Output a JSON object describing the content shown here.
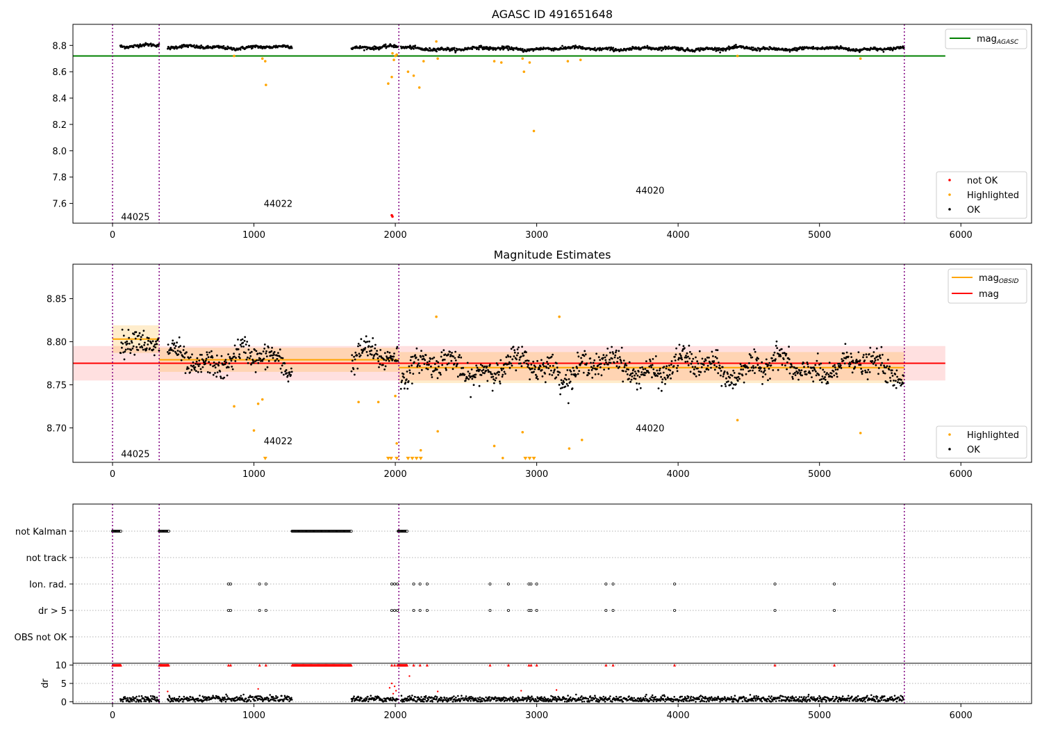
{
  "figure": {
    "panel1_title": "AGASC ID 491651648",
    "panel2_title": "Magnitude Estimates"
  },
  "colors": {
    "ok": "#000000",
    "highlighted": "#ffa500",
    "not_ok": "#ff0000",
    "mag_agasc": "#008000",
    "mag_obsid": "#ffa500",
    "mag": "#ff0000",
    "obsid_line": "#800080",
    "band_red": "#ff0000",
    "band_orange": "#ffa500",
    "grid": "#b0b0b0"
  },
  "chart_data": [
    {
      "id": "panel1",
      "type": "scatter",
      "title": "AGASC ID 491651648",
      "xlabel": "",
      "ylabel": "",
      "xlim": [
        -280,
        6500
      ],
      "ylim": [
        7.45,
        8.96
      ],
      "xticks": [
        0,
        1000,
        2000,
        3000,
        4000,
        5000,
        6000
      ],
      "yticks": [
        7.6,
        7.8,
        8.0,
        8.2,
        8.4,
        8.6,
        8.8
      ],
      "ytick_labels": [
        "7.6",
        "7.8",
        "8.0",
        "8.2",
        "8.4",
        "8.6",
        "8.8"
      ],
      "grid": false,
      "obsid_boundaries": [
        0,
        330,
        2025,
        5600
      ],
      "obsid_labels": [
        {
          "text": "44025",
          "x": 60,
          "y": 7.5
        },
        {
          "text": "44022",
          "x": 1070,
          "y": 7.6
        },
        {
          "text": "44020",
          "x": 3700,
          "y": 7.7
        }
      ],
      "reference_lines": [
        {
          "name": "mag_AGASC",
          "y": 8.72,
          "x": [
            -280,
            5890
          ],
          "color": "#008000"
        }
      ],
      "ok_series": {
        "name": "OK",
        "segments": [
          {
            "x_start": 55,
            "x_end": 330,
            "level": 8.8
          },
          {
            "x_start": 390,
            "x_end": 1270,
            "level": 8.785
          },
          {
            "x_start": 1690,
            "x_end": 2020,
            "level": 8.785
          },
          {
            "x_start": 2040,
            "x_end": 5600,
            "level": 8.775
          }
        ]
      },
      "highlighted_points": {
        "name": "Highlighted",
        "x": [
          860,
          1060,
          1080,
          1085,
          1950,
          1975,
          1980,
          1990,
          2000,
          2010,
          2090,
          2130,
          2170,
          2200,
          2290,
          2300,
          2700,
          2750,
          2900,
          2910,
          2950,
          2980,
          3220,
          3310,
          4420,
          5290
        ],
        "y": [
          8.72,
          8.7,
          8.68,
          8.5,
          8.51,
          8.56,
          8.74,
          8.69,
          8.72,
          8.73,
          8.6,
          8.57,
          8.48,
          8.68,
          8.83,
          8.7,
          8.68,
          8.67,
          8.7,
          8.6,
          8.67,
          8.15,
          8.68,
          8.69,
          8.72,
          8.7
        ]
      },
      "not_ok_points": {
        "name": "not OK",
        "x": [
          1975,
          1980
        ],
        "y": [
          7.51,
          7.5
        ]
      },
      "legend_top": {
        "entries": [
          "mag_AGASC"
        ],
        "position": "upper right"
      },
      "legend_bottom": {
        "entries": [
          "not OK",
          "Highlighted",
          "OK"
        ],
        "position": "lower right"
      }
    },
    {
      "id": "panel2",
      "type": "scatter",
      "title": "Magnitude Estimates",
      "xlabel": "",
      "ylabel": "",
      "xlim": [
        -280,
        6500
      ],
      "ylim": [
        8.66,
        8.89
      ],
      "xticks": [
        0,
        1000,
        2000,
        3000,
        4000,
        5000,
        6000
      ],
      "yticks": [
        8.7,
        8.75,
        8.8,
        8.85
      ],
      "ytick_labels": [
        "8.70",
        "8.75",
        "8.80",
        "8.85"
      ],
      "grid": false,
      "obsid_boundaries": [
        0,
        330,
        2025,
        5600
      ],
      "obsid_labels": [
        {
          "text": "44025",
          "x": 60,
          "y": 8.67
        },
        {
          "text": "44022",
          "x": 1070,
          "y": 8.685
        },
        {
          "text": "44020",
          "x": 3700,
          "y": 8.7
        }
      ],
      "mag": {
        "name": "mag",
        "y": 8.775,
        "band": [
          8.755,
          8.795
        ],
        "x": [
          -280,
          5890
        ]
      },
      "mag_obsid": [
        {
          "x": [
            0,
            330
          ],
          "y": 8.803,
          "band": [
            8.787,
            8.819
          ]
        },
        {
          "x": [
            330,
            2025
          ],
          "y": 8.779,
          "band": [
            8.765,
            8.793
          ]
        },
        {
          "x": [
            2025,
            5600
          ],
          "y": 8.77,
          "band": [
            8.752,
            8.788
          ]
        }
      ],
      "ok_series": {
        "name": "OK",
        "segments": [
          {
            "x_start": 55,
            "x_end": 330,
            "level": 8.805
          },
          {
            "x_start": 390,
            "x_end": 1270,
            "level": 8.779
          },
          {
            "x_start": 1690,
            "x_end": 2020,
            "level": 8.779
          },
          {
            "x_start": 2040,
            "x_end": 5600,
            "level": 8.77
          }
        ]
      },
      "highlighted_points": {
        "name": "Highlighted",
        "x": [
          860,
          1030,
          1060,
          1000,
          1740,
          1880,
          2000,
          2010,
          2180,
          2290,
          2300,
          2700,
          2760,
          2900,
          3160,
          3230,
          3320,
          4420,
          5290
        ],
        "y": [
          8.725,
          8.728,
          8.733,
          8.697,
          8.73,
          8.73,
          8.737,
          8.682,
          8.674,
          8.829,
          8.696,
          8.679,
          8.665,
          8.695,
          8.829,
          8.676,
          8.686,
          8.709,
          8.694
        ]
      },
      "below_range_markers": {
        "name": "Highlighted (below range)",
        "x": [
          1080,
          1950,
          1970,
          2010,
          2090,
          2120,
          2150,
          2180,
          2920,
          2950,
          2980
        ]
      },
      "legend_top": {
        "entries": [
          "mag_OBSID",
          "mag"
        ],
        "position": "upper right"
      },
      "legend_bottom": {
        "entries": [
          "Highlighted",
          "OK"
        ],
        "position": "lower right"
      }
    },
    {
      "id": "panel3",
      "type": "scatter",
      "title": "",
      "xlabel": "",
      "xlim": [
        -280,
        6500
      ],
      "xticks": [
        0,
        1000,
        2000,
        3000,
        4000,
        5000,
        6000
      ],
      "obsid_boundaries": [
        0,
        330,
        2025,
        5600
      ],
      "flag_rows": [
        {
          "label": "not Kalman",
          "ranges": [
            [
              0,
              60
            ],
            [
              330,
              400
            ],
            [
              1270,
              1690
            ],
            [
              2020,
              2085
            ]
          ]
        },
        {
          "label": "not track",
          "ranges": []
        },
        {
          "label": "Ion. rad.",
          "points": [
            820,
            835,
            1040,
            1085,
            1975,
            1995,
            2015,
            2130,
            2175,
            2225,
            2670,
            2800,
            2945,
            2960,
            3000,
            3490,
            3540,
            3975,
            4685,
            5105
          ]
        },
        {
          "label": "dr > 5",
          "points": [
            820,
            835,
            1040,
            1085,
            1975,
            1995,
            2015,
            2130,
            2175,
            2225,
            2670,
            2800,
            2945,
            2960,
            3000,
            3490,
            3540,
            3975,
            4685,
            5105
          ]
        },
        {
          "label": "OBS not OK",
          "ranges": []
        }
      ],
      "dr_panel": {
        "ylabel": "dr",
        "ylim": [
          -0.5,
          10.5
        ],
        "yticks": [
          0,
          5,
          10
        ],
        "ytick_labels": [
          "0",
          "5",
          "10"
        ],
        "clipped_level": 10,
        "ok_segments": [
          {
            "x_start": 55,
            "x_end": 330
          },
          {
            "x_start": 390,
            "x_end": 1270
          },
          {
            "x_start": 1690,
            "x_end": 2020
          },
          {
            "x_start": 2040,
            "x_end": 5600
          }
        ],
        "clipped_ranges": [
          [
            0,
            60
          ],
          [
            330,
            400
          ],
          [
            1270,
            1690
          ],
          [
            2020,
            2085
          ]
        ],
        "clipped_points": [
          820,
          835,
          1040,
          1085,
          1975,
          1995,
          2015,
          2130,
          2175,
          2225,
          2670,
          2800,
          2945,
          2960,
          3000,
          3490,
          3540,
          3975,
          4685,
          5105
        ],
        "red_points": {
          "x": [
            390,
            1030,
            1960,
            1975,
            1985,
            1995,
            2005,
            2100,
            2300,
            2890,
            3140
          ],
          "y": [
            2.8,
            3.5,
            3.8,
            5.0,
            2.2,
            4.2,
            3.0,
            7.0,
            2.8,
            3.0,
            3.2
          ]
        }
      }
    }
  ]
}
